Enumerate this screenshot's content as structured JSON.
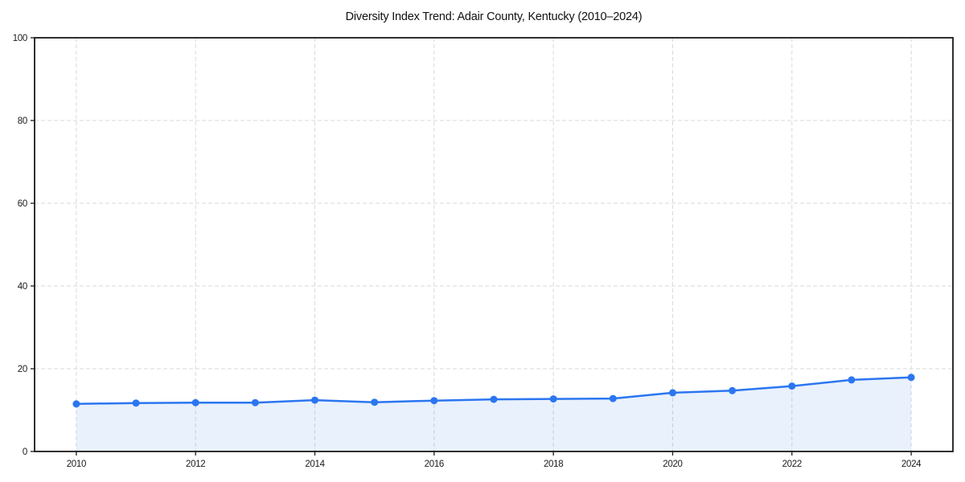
{
  "chart_data": {
    "type": "line",
    "title": "Diversity Index Trend: Adair County, Kentucky (2010–2024)",
    "x": [
      2010,
      2011,
      2012,
      2013,
      2014,
      2015,
      2016,
      2017,
      2018,
      2019,
      2020,
      2021,
      2022,
      2023,
      2024
    ],
    "series": [
      {
        "name": "Diversity Index",
        "values": [
          11.5,
          11.7,
          11.8,
          11.8,
          12.4,
          11.9,
          12.3,
          12.6,
          12.7,
          12.8,
          14.2,
          14.7,
          15.8,
          17.3,
          17.9
        ]
      }
    ],
    "xlabel": "",
    "ylabel": "",
    "xlim": [
      2009.3,
      2024.7
    ],
    "ylim": [
      0,
      100
    ],
    "xticks": [
      2010,
      2012,
      2014,
      2016,
      2018,
      2020,
      2022,
      2024
    ],
    "yticks": [
      0,
      20,
      40,
      60,
      80,
      100
    ],
    "grid": "dashed",
    "legend": "none",
    "area_fill": true,
    "colors": {
      "line": "#2b76f0",
      "marker": "#2b76f0",
      "fill": "rgba(43,118,240,0.10)",
      "grid": "#d9d9d9",
      "spine": "#1a1a1a",
      "tick": "#1a1a1a",
      "title": "#111111",
      "background": "#ffffff"
    }
  }
}
